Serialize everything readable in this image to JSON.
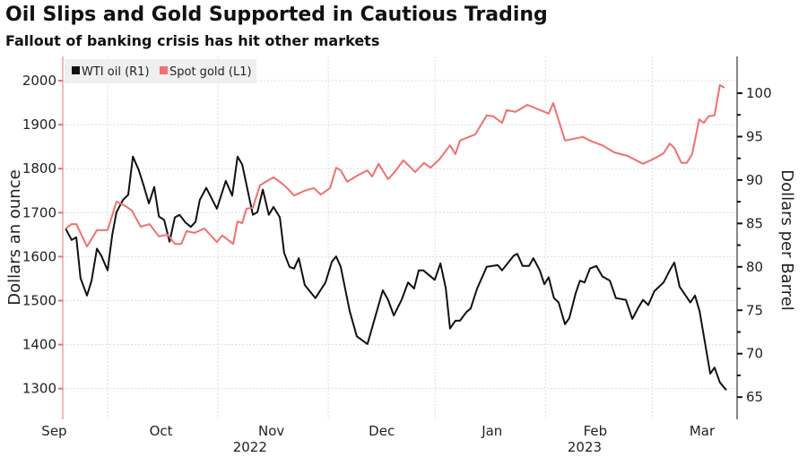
{
  "header": {
    "title": "Oil Slips and Gold Supported in Cautious Trading",
    "subtitle": "Fallout of banking crisis has hit other markets"
  },
  "chart_data": {
    "type": "line",
    "title": "Oil Slips and Gold Supported in Cautious Trading",
    "subtitle": "Fallout of banking crisis has hit other markets",
    "x_unit": "days since 2022-09-01",
    "xlim": [
      18,
      206
    ],
    "x_ticks": [
      {
        "label": "Sep",
        "day": 15
      },
      {
        "label": "Oct",
        "day": 45
      },
      {
        "label": "Nov",
        "day": 76
      },
      {
        "label": "Dec",
        "day": 107
      },
      {
        "label": "Jan",
        "day": 138
      },
      {
        "label": "Feb",
        "day": 167
      },
      {
        "label": "Mar",
        "day": 197
      }
    ],
    "year_labels": [
      {
        "label": "2022",
        "day": 70
      },
      {
        "label": "2023",
        "day": 164
      }
    ],
    "month_gridlines": [
      30,
      61,
      92,
      122,
      153,
      183
    ],
    "left_axis": {
      "label": "Dollars an ounce",
      "ylim": [
        1260,
        2060
      ],
      "ticks": [
        1300,
        1400,
        1500,
        1600,
        1700,
        1800,
        1900,
        2000
      ]
    },
    "right_axis": {
      "label": "Dollars per Barrel",
      "ylim": [
        63.5,
        104.5
      ],
      "ticks": [
        65,
        70,
        75,
        80,
        85,
        90,
        95,
        100
      ]
    },
    "grid": true,
    "legend": {
      "placement": "top-left",
      "entries": [
        "WTI oil (R1)",
        "Spot gold (L1)"
      ]
    },
    "series": [
      {
        "name": "WTI oil (R1)",
        "axis": "right",
        "color": "#111111",
        "points": [
          [
            18.2,
            84.4
          ],
          [
            19.9,
            83.1
          ],
          [
            21.2,
            83.4
          ],
          [
            22.4,
            78.7
          ],
          [
            24.2,
            76.7
          ],
          [
            25.5,
            78.4
          ],
          [
            27,
            82.1
          ],
          [
            28.2,
            81.3
          ],
          [
            30,
            79.6
          ],
          [
            31.3,
            83.7
          ],
          [
            32.5,
            86.3
          ],
          [
            34.3,
            87.7
          ],
          [
            35.8,
            88.3
          ],
          [
            37.1,
            92.7
          ],
          [
            38.8,
            91.1
          ],
          [
            40.1,
            89.4
          ],
          [
            41.6,
            87.3
          ],
          [
            43.1,
            89.2
          ],
          [
            44.4,
            85.8
          ],
          [
            45.9,
            85.4
          ],
          [
            47.4,
            82.9
          ],
          [
            48.9,
            85.7
          ],
          [
            50.2,
            86.0
          ],
          [
            51.9,
            85.1
          ],
          [
            53.4,
            84.6
          ],
          [
            54.7,
            85.2
          ],
          [
            55.9,
            87.7
          ],
          [
            57.7,
            89.1
          ],
          [
            60.7,
            86.7
          ],
          [
            63.2,
            89.9
          ],
          [
            65,
            88.2
          ],
          [
            66.5,
            92.7
          ],
          [
            67.8,
            91.8
          ],
          [
            70.8,
            86.0
          ],
          [
            72.1,
            86.3
          ],
          [
            73.6,
            88.9
          ],
          [
            75.3,
            86.0
          ],
          [
            76.6,
            86.9
          ],
          [
            78.4,
            85.7
          ],
          [
            79.6,
            81.6
          ],
          [
            81.1,
            80.0
          ],
          [
            82.4,
            79.8
          ],
          [
            83.7,
            81.0
          ],
          [
            85.4,
            77.9
          ],
          [
            88.4,
            76.4
          ],
          [
            91.2,
            78.2
          ],
          [
            93,
            80.6
          ],
          [
            94.2,
            81.2
          ],
          [
            95.5,
            80.0
          ],
          [
            98,
            74.9
          ],
          [
            100,
            72.0
          ],
          [
            103,
            71.1
          ],
          [
            107.3,
            77.3
          ],
          [
            108.8,
            76.2
          ],
          [
            110.4,
            74.4
          ],
          [
            112.6,
            76.2
          ],
          [
            114.4,
            78.2
          ],
          [
            116.1,
            77.5
          ],
          [
            117.4,
            79.6
          ],
          [
            118.7,
            79.6
          ],
          [
            121.9,
            78.5
          ],
          [
            123.5,
            80.4
          ],
          [
            125,
            77.5
          ],
          [
            126.2,
            72.9
          ],
          [
            127.7,
            73.8
          ],
          [
            129,
            73.8
          ],
          [
            130.8,
            74.8
          ],
          [
            132,
            75.2
          ],
          [
            133.8,
            77.5
          ],
          [
            136.5,
            80.0
          ],
          [
            139.6,
            80.2
          ],
          [
            140.8,
            79.6
          ],
          [
            144.1,
            81.3
          ],
          [
            145.1,
            81.5
          ],
          [
            146.6,
            80.1
          ],
          [
            148.4,
            80.1
          ],
          [
            149.6,
            81.0
          ],
          [
            151.4,
            79.6
          ],
          [
            152.7,
            78.0
          ],
          [
            153.9,
            78.8
          ],
          [
            155.4,
            76.4
          ],
          [
            156.7,
            75.9
          ],
          [
            158.5,
            73.4
          ],
          [
            159.7,
            74.1
          ],
          [
            161.5,
            77.0
          ],
          [
            162.7,
            78.4
          ],
          [
            164,
            78.2
          ],
          [
            165.5,
            79.8
          ],
          [
            167.3,
            80.1
          ],
          [
            169,
            78.9
          ],
          [
            171.1,
            78.4
          ],
          [
            172.8,
            76.4
          ],
          [
            175.6,
            76.2
          ],
          [
            177.4,
            74.0
          ],
          [
            179.1,
            75.3
          ],
          [
            180.4,
            76.2
          ],
          [
            181.9,
            75.6
          ],
          [
            183.6,
            77.2
          ],
          [
            186.2,
            78.2
          ],
          [
            187.9,
            79.6
          ],
          [
            189.2,
            80.5
          ],
          [
            190.7,
            77.7
          ],
          [
            193.7,
            75.9
          ],
          [
            195,
            76.7
          ],
          [
            196.3,
            74.9
          ],
          [
            199.3,
            67.7
          ],
          [
            200.5,
            68.4
          ],
          [
            202,
            66.7
          ],
          [
            203.8,
            65.8
          ]
        ]
      },
      {
        "name": "Spot gold (L1)",
        "axis": "left",
        "color": "#f07070",
        "points": [
          [
            18.2,
            1664
          ],
          [
            19.9,
            1674
          ],
          [
            21.2,
            1674
          ],
          [
            24.2,
            1623
          ],
          [
            27,
            1660
          ],
          [
            30,
            1660
          ],
          [
            32.5,
            1725
          ],
          [
            35,
            1715
          ],
          [
            36.8,
            1705
          ],
          [
            39.3,
            1668
          ],
          [
            41.8,
            1674
          ],
          [
            44.4,
            1646
          ],
          [
            46.9,
            1650
          ],
          [
            48.9,
            1629
          ],
          [
            50.7,
            1629
          ],
          [
            52.2,
            1658
          ],
          [
            54.4,
            1654
          ],
          [
            57.2,
            1664
          ],
          [
            60.7,
            1633
          ],
          [
            62.2,
            1648
          ],
          [
            65.3,
            1629
          ],
          [
            66.5,
            1680
          ],
          [
            67.8,
            1676
          ],
          [
            69,
            1709
          ],
          [
            70.8,
            1711
          ],
          [
            72.8,
            1762
          ],
          [
            74.8,
            1772
          ],
          [
            76.6,
            1780
          ],
          [
            78.4,
            1770
          ],
          [
            80.4,
            1756
          ],
          [
            82.4,
            1739
          ],
          [
            85.4,
            1750
          ],
          [
            87.9,
            1756
          ],
          [
            89.9,
            1741
          ],
          [
            92.5,
            1756
          ],
          [
            94.2,
            1802
          ],
          [
            95.5,
            1796
          ],
          [
            97.3,
            1770
          ],
          [
            100.5,
            1786
          ],
          [
            103,
            1796
          ],
          [
            104.3,
            1782
          ],
          [
            106.1,
            1811
          ],
          [
            108.8,
            1776
          ],
          [
            110.6,
            1792
          ],
          [
            113.1,
            1819
          ],
          [
            116.4,
            1792
          ],
          [
            118.9,
            1813
          ],
          [
            120.7,
            1802
          ],
          [
            123.2,
            1821
          ],
          [
            126.2,
            1853
          ],
          [
            127.7,
            1833
          ],
          [
            129,
            1864
          ],
          [
            133.3,
            1878
          ],
          [
            136.5,
            1921
          ],
          [
            138.3,
            1919
          ],
          [
            140.8,
            1904
          ],
          [
            142.1,
            1933
          ],
          [
            144.6,
            1929
          ],
          [
            147.9,
            1945
          ],
          [
            150.9,
            1935
          ],
          [
            153.9,
            1925
          ],
          [
            155.2,
            1949
          ],
          [
            158.5,
            1864
          ],
          [
            161,
            1868
          ],
          [
            163.5,
            1872
          ],
          [
            166,
            1862
          ],
          [
            169,
            1853
          ],
          [
            172.3,
            1837
          ],
          [
            176.1,
            1829
          ],
          [
            180.4,
            1811
          ],
          [
            183.6,
            1823
          ],
          [
            186.2,
            1835
          ],
          [
            187.9,
            1857
          ],
          [
            189.2,
            1847
          ],
          [
            191.2,
            1813
          ],
          [
            192.7,
            1813
          ],
          [
            194.2,
            1833
          ],
          [
            196.2,
            1912
          ],
          [
            197.5,
            1904
          ],
          [
            198.8,
            1919
          ],
          [
            200.5,
            1921
          ],
          [
            202,
            1990
          ],
          [
            203.3,
            1984
          ]
        ]
      }
    ]
  }
}
